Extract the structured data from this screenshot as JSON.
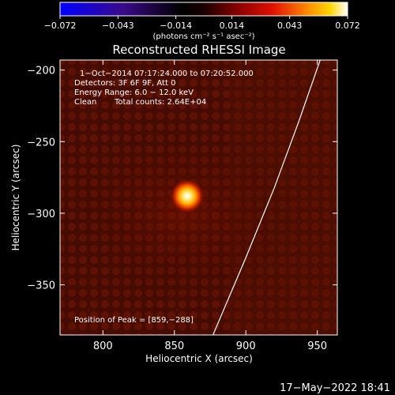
{
  "colorbar": {
    "min": -0.072,
    "max": 0.072,
    "ticks": [
      -0.072,
      -0.043,
      -0.014,
      0.014,
      0.043,
      0.072
    ],
    "tick_labels": [
      "−0.072",
      "−0.043",
      "−0.014",
      "0.014",
      "0.043",
      "0.072"
    ],
    "units_label": "(photons cm⁻² s⁻¹ asec⁻²)",
    "colors": [
      "#0000ff",
      "#4b0082",
      "#000000",
      "#7a0000",
      "#e60000",
      "#ff8a00",
      "#ffd000",
      "#ffffff"
    ]
  },
  "chart_data": {
    "type": "heatmap",
    "title": "Reconstructed RHESSI Image",
    "xlabel": "Heliocentric X (arcsec)",
    "ylabel": "Heliocentric Y (arcsec)",
    "xlim": [
      770,
      964
    ],
    "ylim": [
      -385,
      -193
    ],
    "x_ticks": [
      800,
      850,
      900,
      950
    ],
    "y_ticks": [
      -200,
      -250,
      -300,
      -350
    ],
    "y_tick_labels": [
      "−200",
      "−250",
      "−300",
      "−350"
    ],
    "annotations": {
      "time_range": "1−Oct−2014 07:17:24.000 to 07:20:52.000",
      "detectors": "Detectors: 3F 6F 9F, Att 0",
      "energy_range": "Energy Range: 6.0 − 12.0 keV",
      "clean_label": "Clean",
      "total_counts": "Total counts: 2.64E+04",
      "peak_label": "Position of Peak = [859,−288]"
    },
    "peak": {
      "x": 859,
      "y": -288
    },
    "limb_curve": [
      {
        "x": 877,
        "y": -385
      },
      {
        "x": 900,
        "y": -331
      },
      {
        "x": 920,
        "y": -282
      },
      {
        "x": 937,
        "y": -236
      },
      {
        "x": 952,
        "y": -193
      }
    ]
  },
  "footer": {
    "timestamp": "17−May−2022 18:41"
  }
}
